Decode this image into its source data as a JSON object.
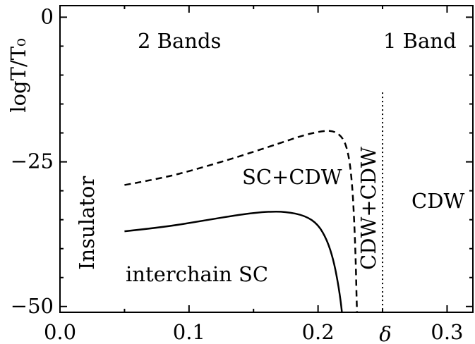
{
  "chart_data": {
    "type": "line",
    "xlabel": "δ",
    "ylabel": "logT/T₀",
    "xlim": [
      0.0,
      0.32
    ],
    "ylim": [
      -51,
      2
    ],
    "xticks": [
      {
        "value": 0.0,
        "label": "0.0"
      },
      {
        "value": 0.1,
        "label": "0.1"
      },
      {
        "value": 0.2,
        "label": "0.2"
      },
      {
        "value": 0.3,
        "label": "0.3"
      }
    ],
    "yticks": [
      {
        "value": 0,
        "label": "0"
      },
      {
        "value": -25,
        "label": "−25"
      },
      {
        "value": -50,
        "label": "−50"
      }
    ],
    "series": [
      {
        "style": "dashed",
        "points": [
          [
            0.05,
            -29.0
          ],
          [
            0.08,
            -27.8
          ],
          [
            0.11,
            -26.0
          ],
          [
            0.14,
            -24.0
          ],
          [
            0.17,
            -21.8
          ],
          [
            0.19,
            -20.3
          ],
          [
            0.205,
            -19.6
          ],
          [
            0.213,
            -19.7
          ],
          [
            0.22,
            -21.0
          ],
          [
            0.224,
            -24.0
          ],
          [
            0.2265,
            -29.0
          ],
          [
            0.228,
            -35.0
          ],
          [
            0.2292,
            -42.0
          ],
          [
            0.2298,
            -48.0
          ],
          [
            0.2302,
            -51.0
          ]
        ]
      },
      {
        "style": "solid",
        "points": [
          [
            0.05,
            -37.0
          ],
          [
            0.08,
            -36.3
          ],
          [
            0.11,
            -35.2
          ],
          [
            0.14,
            -34.1
          ],
          [
            0.16,
            -33.6
          ],
          [
            0.175,
            -33.6
          ],
          [
            0.19,
            -34.3
          ],
          [
            0.2,
            -35.8
          ],
          [
            0.207,
            -38.5
          ],
          [
            0.212,
            -42.0
          ],
          [
            0.2155,
            -46.0
          ],
          [
            0.2175,
            -49.0
          ],
          [
            0.2185,
            -51.0
          ]
        ]
      },
      {
        "style": "dotted",
        "points": [
          [
            0.25,
            -13.0
          ],
          [
            0.25,
            -51.0
          ]
        ]
      }
    ],
    "annotations": {
      "two_bands": "2 Bands",
      "one_band": "1 Band",
      "insulator": "Insulator",
      "sc_cdw": "SC+CDW",
      "cdw_cdw": "CDW+CDW",
      "cdw": "CDW",
      "interchain": "interchain SC"
    }
  }
}
